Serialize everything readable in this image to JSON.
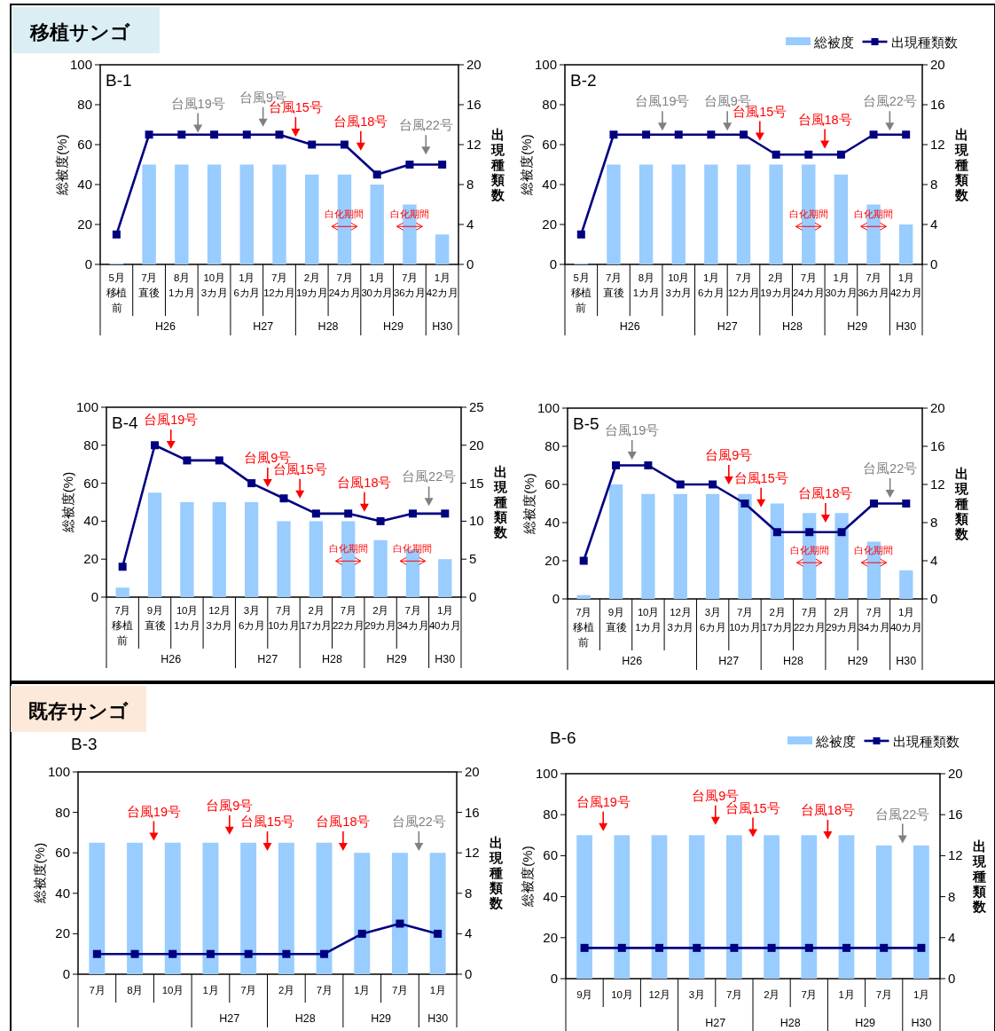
{
  "chart_data": [
    {
      "type": "bar",
      "title": "B-1",
      "subtitle": "移植サンゴ",
      "ylabel": "総被度(%)",
      "y2label": "出現種類数",
      "ylim": [
        0,
        100
      ],
      "yticks": [
        0,
        20,
        40,
        60,
        80,
        100
      ],
      "y2lim": [
        0,
        20
      ],
      "y2ticks": [
        0,
        4,
        8,
        12,
        16,
        20
      ],
      "marker": "square",
      "legend": false,
      "categories": [
        "5月移植前",
        "7月直後",
        "8月1カ月",
        "10月3カ月",
        "1月6カ月",
        "7月12カ月",
        "2月19カ月",
        "7月24カ月",
        "1月30カ月",
        "7月36カ月",
        "1月42カ月"
      ],
      "series": [
        {
          "type": "bar",
          "color": "#99ccff",
          "values": [
            0.5,
            50,
            50,
            50,
            50,
            50,
            45,
            45,
            40,
            30,
            15
          ]
        },
        {
          "type": "line",
          "axis": "y2",
          "color": "#000080",
          "values": [
            3,
            13,
            13,
            13,
            13,
            13,
            12,
            12,
            9,
            10,
            10
          ]
        }
      ],
      "annotations": [
        "台風19号",
        "台風9号",
        "台風15号",
        "台風18号",
        "台風22号",
        "白化期間",
        "白化期間",
        "H26",
        "H27",
        "H28",
        "H29",
        "H30"
      ]
    },
    {
      "type": "bar",
      "title": "B-2",
      "ylabel": "総被度(%)",
      "y2label": "出現種類数",
      "ylim": [
        0,
        100
      ],
      "yticks": [
        0,
        20,
        40,
        60,
        80,
        100
      ],
      "y2lim": [
        0,
        20
      ],
      "y2ticks": [
        0,
        4,
        8,
        12,
        16,
        20
      ],
      "marker": "square",
      "legend": "top right",
      "categories": [
        "5月移植前",
        "7月直後",
        "8月1カ月",
        "10月3カ月",
        "1月6カ月",
        "7月12カ月",
        "2月19カ月",
        "7月24カ月",
        "1月30カ月",
        "7月36カ月",
        "1月42カ月"
      ],
      "series": [
        {
          "type": "bar",
          "name": "総被度",
          "color": "#99ccff",
          "values": [
            0.5,
            50,
            50,
            50,
            50,
            50,
            50,
            50,
            45,
            30,
            20
          ]
        },
        {
          "type": "line",
          "axis": "y2",
          "name": "出現種類数",
          "color": "#000080",
          "values": [
            3,
            13,
            13,
            13,
            13,
            13,
            11,
            11,
            11,
            13,
            13
          ]
        }
      ],
      "annotations": [
        "台風19号",
        "台風9号",
        "台風15号",
        "台風18号",
        "台風22号",
        "白化期間",
        "白化期間",
        "H26",
        "H27",
        "H28",
        "H29",
        "H30"
      ]
    },
    {
      "type": "bar",
      "title": "B-4",
      "ylabel": "総被度(%)",
      "y2label": "出現種類数",
      "ylim": [
        0,
        100
      ],
      "yticks": [
        0,
        20,
        40,
        60,
        80,
        100
      ],
      "y2lim": [
        0,
        25
      ],
      "y2ticks": [
        0,
        5,
        10,
        15,
        20,
        25
      ],
      "marker": "square",
      "legend": false,
      "categories": [
        "7月移植前",
        "9月直後",
        "10月1カ月",
        "12月3カ月",
        "3月6カ月",
        "7月10カ月",
        "2月17カ月",
        "7月22カ月",
        "2月29カ月",
        "7月34カ月",
        "1月40カ月"
      ],
      "series": [
        {
          "type": "bar",
          "color": "#99ccff",
          "values": [
            5,
            55,
            50,
            50,
            50,
            40,
            40,
            40,
            30,
            25,
            20
          ]
        },
        {
          "type": "line",
          "axis": "y2",
          "color": "#000080",
          "values": [
            4,
            20,
            18,
            18,
            15,
            13,
            11,
            11,
            10,
            11,
            11
          ]
        }
      ],
      "annotations": [
        "台風19号",
        "台風9号",
        "台風15号",
        "台風18号",
        "台風22号",
        "白化期間",
        "白化期間",
        "H26",
        "H27",
        "H28",
        "H29",
        "H30"
      ]
    },
    {
      "type": "bar",
      "title": "B-5",
      "ylabel": "総被度(%)",
      "y2label": "出現種類数",
      "ylim": [
        0,
        100
      ],
      "yticks": [
        0,
        20,
        40,
        60,
        80,
        100
      ],
      "y2lim": [
        0,
        20
      ],
      "y2ticks": [
        0,
        4,
        8,
        12,
        16,
        20
      ],
      "marker": "square",
      "legend": false,
      "categories": [
        "7月移植前",
        "9月直後",
        "10月1カ月",
        "12月3カ月",
        "3月6カ月",
        "7月10カ月",
        "2月17カ月",
        "7月22カ月",
        "2月29カ月",
        "7月34カ月",
        "1月40カ月"
      ],
      "series": [
        {
          "type": "bar",
          "color": "#99ccff",
          "values": [
            2,
            60,
            55,
            55,
            55,
            55,
            50,
            45,
            45,
            30,
            15
          ]
        },
        {
          "type": "line",
          "axis": "y2",
          "color": "#000080",
          "values": [
            4,
            14,
            14,
            12,
            12,
            10,
            7,
            7,
            7,
            10,
            10
          ]
        }
      ],
      "annotations": [
        "台風19号",
        "台風9号",
        "台風15号",
        "台風18号",
        "台風22号",
        "白化期間",
        "白化期間",
        "H26",
        "H27",
        "H28",
        "H29",
        "H30"
      ]
    },
    {
      "type": "bar",
      "title": "B-3",
      "subtitle": "既存サンゴ",
      "ylabel": "総被度(%)",
      "y2label": "出現種類数",
      "ylim": [
        0,
        100
      ],
      "yticks": [
        0,
        20,
        40,
        60,
        80,
        100
      ],
      "y2lim": [
        0,
        20
      ],
      "y2ticks": [
        0,
        4,
        8,
        12,
        16,
        20
      ],
      "marker": "square",
      "legend": false,
      "categories": [
        "7月",
        "8月",
        "10月",
        "1月",
        "7月",
        "2月",
        "7月",
        "1月",
        "7月",
        "1月"
      ],
      "series": [
        {
          "type": "bar",
          "color": "#99ccff",
          "values": [
            65,
            65,
            65,
            65,
            65,
            65,
            65,
            60,
            60,
            60
          ]
        },
        {
          "type": "line",
          "axis": "y2",
          "color": "#000080",
          "values": [
            2,
            2,
            2,
            2,
            2,
            2,
            2,
            4,
            5,
            4
          ]
        }
      ],
      "annotations": [
        "台風19号",
        "台風9号",
        "台風15号",
        "台風18号",
        "台風22号",
        "H27",
        "H28",
        "H29",
        "H30"
      ]
    },
    {
      "type": "bar",
      "title": "B-6",
      "ylabel": "総被度(%)",
      "y2label": "出現種類数",
      "ylim": [
        0,
        100
      ],
      "yticks": [
        0,
        20,
        40,
        60,
        80,
        100
      ],
      "y2lim": [
        0,
        20
      ],
      "y2ticks": [
        0,
        4,
        8,
        12,
        16,
        20
      ],
      "marker": "square",
      "legend": "top right",
      "categories": [
        "9月",
        "10月",
        "12月",
        "3月",
        "7月",
        "2月",
        "7月",
        "1月",
        "7月",
        "1月"
      ],
      "series": [
        {
          "type": "bar",
          "name": "総被度",
          "color": "#99ccff",
          "values": [
            70,
            70,
            70,
            70,
            70,
            70,
            70,
            70,
            65,
            65
          ]
        },
        {
          "type": "line",
          "axis": "y2",
          "name": "出現種類数",
          "color": "#000080",
          "values": [
            3,
            3,
            3,
            3,
            3,
            3,
            3,
            3,
            3,
            3
          ]
        }
      ],
      "annotations": [
        "台風19号",
        "台風9号",
        "台風15号",
        "台風18号",
        "台風22号",
        "H27",
        "H28",
        "H29",
        "H30"
      ]
    }
  ]
}
